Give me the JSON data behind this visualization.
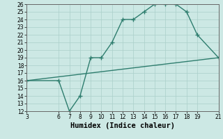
{
  "xlabel": "Humidex (Indice chaleur)",
  "line1_x": [
    3,
    6,
    7,
    8,
    9,
    10,
    11,
    12,
    13,
    14,
    15,
    16,
    17,
    18,
    19,
    21
  ],
  "line1_y": [
    16,
    16,
    12,
    14,
    19,
    19,
    21,
    24,
    24,
    25,
    26,
    26,
    26,
    25,
    22,
    19
  ],
  "line2_x": [
    3,
    21
  ],
  "line2_y": [
    16,
    19
  ],
  "line_color": "#2e7d6e",
  "marker": "+",
  "markersize": 4,
  "xlim": [
    3,
    21
  ],
  "ylim": [
    12,
    26
  ],
  "xticks": [
    3,
    6,
    7,
    8,
    9,
    10,
    11,
    12,
    13,
    14,
    15,
    16,
    17,
    18,
    19,
    21
  ],
  "yticks": [
    12,
    13,
    14,
    15,
    16,
    17,
    18,
    19,
    20,
    21,
    22,
    23,
    24,
    25,
    26
  ],
  "bg_color": "#cce8e4",
  "grid_color": "#aacfca",
  "linewidth": 1.0,
  "tick_fontsize": 5.5,
  "xlabel_fontsize": 7.5
}
